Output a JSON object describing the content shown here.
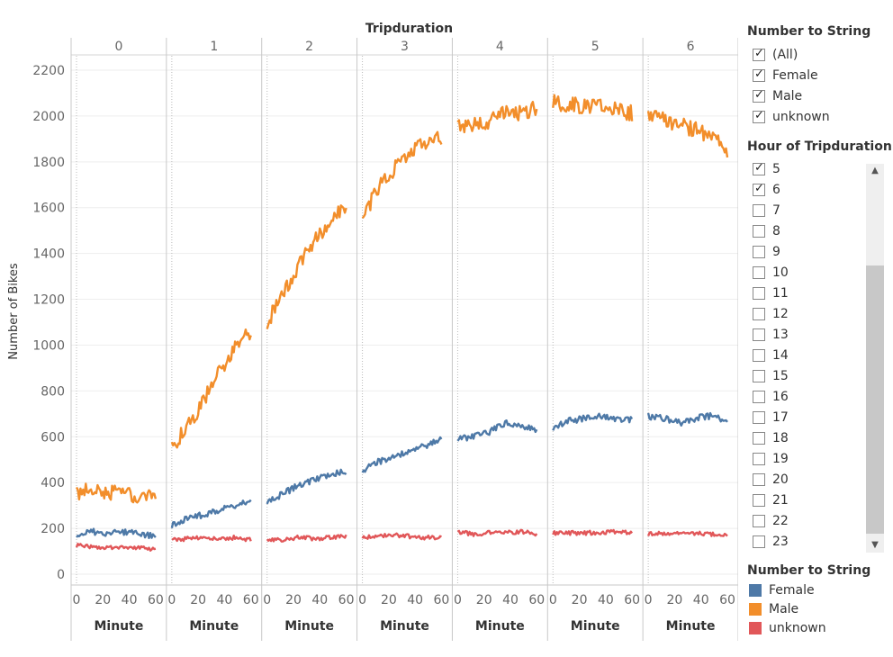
{
  "chart_data": {
    "type": "line",
    "title": "Tripduration",
    "panel_labels": [
      "0",
      "1",
      "2",
      "3",
      "4",
      "5",
      "6"
    ],
    "xlabel": "Minute",
    "ylabel": "Number of Bikes",
    "x_ticks": [
      "0",
      "20",
      "40",
      "60"
    ],
    "y_ticks": [
      "0",
      "200",
      "400",
      "600",
      "800",
      "1000",
      "1200",
      "1400",
      "1600",
      "1800",
      "2000",
      "2200"
    ],
    "ylim": [
      0,
      2250
    ],
    "xlim": [
      0,
      60
    ],
    "grid": true,
    "series": [
      {
        "name": "Female",
        "color": "#4e79a7",
        "values": [
          [
            175,
            185,
            180,
            185,
            175,
            165
          ],
          [
            210,
            245,
            260,
            280,
            300,
            315
          ],
          [
            320,
            350,
            390,
            410,
            440,
            445
          ],
          [
            450,
            490,
            510,
            540,
            560,
            590
          ],
          [
            590,
            600,
            620,
            660,
            650,
            630
          ],
          [
            640,
            670,
            680,
            690,
            680,
            675
          ],
          [
            690,
            680,
            660,
            680,
            690,
            670
          ]
        ]
      },
      {
        "name": "Male",
        "color": "#f28e2b",
        "values": [
          [
            350,
            370,
            360,
            350,
            345,
            335
          ],
          [
            560,
            640,
            760,
            880,
            990,
            1060
          ],
          [
            1100,
            1220,
            1350,
            1460,
            1540,
            1610
          ],
          [
            1560,
            1680,
            1770,
            1840,
            1880,
            1910
          ],
          [
            1950,
            1960,
            1980,
            2020,
            2010,
            2040
          ],
          [
            2060,
            2050,
            2040,
            2060,
            2030,
            2010
          ],
          [
            2000,
            1980,
            1960,
            1940,
            1910,
            1840
          ]
        ]
      },
      {
        "name": "unknown",
        "color": "#e15759",
        "values": [
          [
            125,
            120,
            118,
            120,
            115,
            110
          ],
          [
            150,
            155,
            160,
            155,
            160,
            150
          ],
          [
            155,
            150,
            160,
            155,
            160,
            165
          ],
          [
            160,
            165,
            170,
            165,
            160,
            160
          ],
          [
            185,
            175,
            180,
            180,
            185,
            175
          ],
          [
            180,
            180,
            180,
            182,
            185,
            180
          ],
          [
            175,
            180,
            175,
            180,
            175,
            170
          ]
        ]
      }
    ]
  },
  "filter_gender": {
    "title": "Number to String",
    "items": [
      {
        "label": "(All)",
        "checked": true
      },
      {
        "label": "Female",
        "checked": true
      },
      {
        "label": "Male",
        "checked": true
      },
      {
        "label": "unknown",
        "checked": true
      }
    ]
  },
  "filter_hour": {
    "title": "Hour of Tripduration",
    "items": [
      {
        "label": "5",
        "checked": true
      },
      {
        "label": "6",
        "checked": true
      },
      {
        "label": "7",
        "checked": false
      },
      {
        "label": "8",
        "checked": false
      },
      {
        "label": "9",
        "checked": false
      },
      {
        "label": "10",
        "checked": false
      },
      {
        "label": "11",
        "checked": false
      },
      {
        "label": "12",
        "checked": false
      },
      {
        "label": "13",
        "checked": false
      },
      {
        "label": "14",
        "checked": false
      },
      {
        "label": "15",
        "checked": false
      },
      {
        "label": "16",
        "checked": false
      },
      {
        "label": "17",
        "checked": false
      },
      {
        "label": "18",
        "checked": false
      },
      {
        "label": "19",
        "checked": false
      },
      {
        "label": "20",
        "checked": false
      },
      {
        "label": "21",
        "checked": false
      },
      {
        "label": "22",
        "checked": false
      },
      {
        "label": "23",
        "checked": false
      }
    ],
    "scroll_up_icon": "chevron-up-icon",
    "scroll_down_icon": "chevron-down-icon"
  },
  "legend": {
    "title": "Number to String",
    "items": [
      {
        "label": "Female",
        "color": "#4e79a7"
      },
      {
        "label": "Male",
        "color": "#f28e2b"
      },
      {
        "label": "unknown",
        "color": "#e15759"
      }
    ]
  }
}
